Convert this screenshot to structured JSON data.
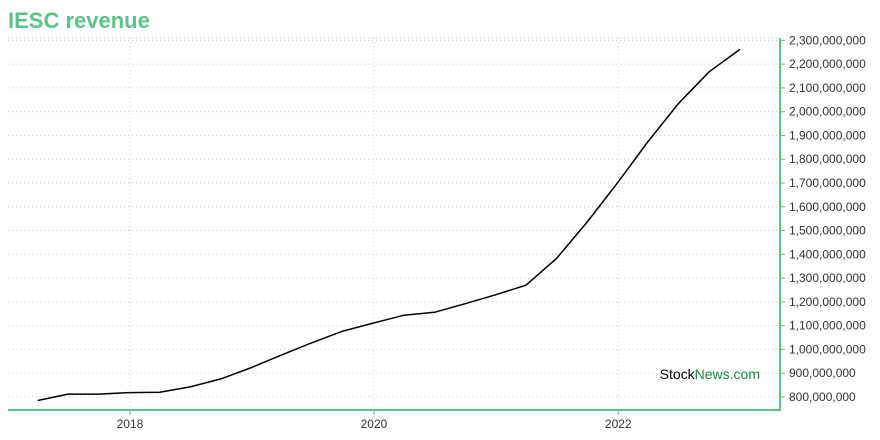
{
  "title": "IESC revenue",
  "watermark": {
    "part1": "Stock",
    "part2": "News",
    "part3": ".com"
  },
  "colors": {
    "accent": "#5cc286",
    "line": "#000000",
    "grid": "#b5dcc4",
    "watermark_dark": "#000000",
    "watermark_green": "#1a8a3c"
  },
  "chart_data": {
    "type": "line",
    "title": "IESC revenue",
    "xlabel": "",
    "ylabel": "",
    "x_ticks": [
      "2018",
      "2020",
      "2022"
    ],
    "y_ticks": [
      "800,000,000",
      "900,000,000",
      "1,000,000,000",
      "1,100,000,000",
      "1,200,000,000",
      "1,300,000,000",
      "1,400,000,000",
      "1,500,000,000",
      "1,600,000,000",
      "1,700,000,000",
      "1,800,000,000",
      "1,900,000,000",
      "2,000,000,000",
      "2,100,000,000",
      "2,200,000,000",
      "2,300,000,000"
    ],
    "ylim": [
      745000000,
      2310000000
    ],
    "grid": true,
    "y_axis_position": "right",
    "series": [
      {
        "x": [
          "2017-03-31",
          "2017-06-30",
          "2017-09-30",
          "2017-12-31",
          "2018-03-31",
          "2018-06-30",
          "2018-09-30",
          "2018-12-31",
          "2019-03-31",
          "2019-06-30",
          "2019-09-30",
          "2019-12-31",
          "2020-03-31",
          "2020-06-30",
          "2020-09-30",
          "2020-12-31",
          "2021-03-31",
          "2021-06-30",
          "2021-09-30",
          "2021-12-31",
          "2022-03-31",
          "2022-06-30",
          "2022-09-30",
          "2022-12-31"
        ],
        "values": [
          785000000,
          812000000,
          812000000,
          818000000,
          820000000,
          842000000,
          876000000,
          924000000,
          977000000,
          1028000000,
          1077000000,
          1111000000,
          1144000000,
          1156000000,
          1192000000,
          1230000000,
          1270000000,
          1382000000,
          1536000000,
          1703000000,
          1874000000,
          2034000000,
          2168000000,
          2262000000
        ]
      }
    ]
  }
}
